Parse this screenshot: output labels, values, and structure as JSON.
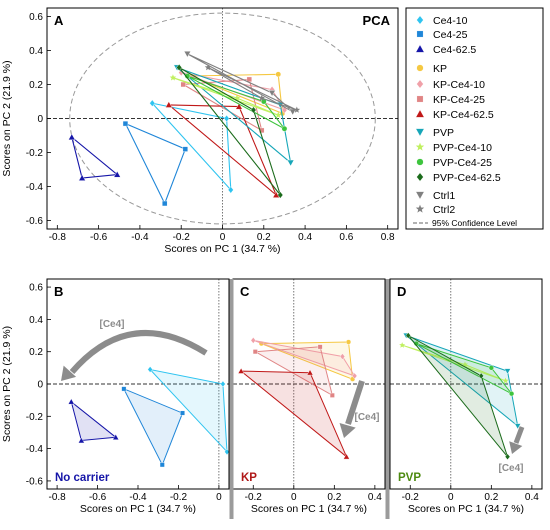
{
  "chart_data": [
    {
      "panel_id": "A",
      "type": "scatter",
      "panel_label": "A",
      "title": "PCA",
      "xlabel": "Scores on PC 1 (34.7 %)",
      "ylabel": "Scores on PC 2 (21.9 %)",
      "xlim": [
        -0.85,
        0.85
      ],
      "ylim": [
        -0.65,
        0.65
      ],
      "xticks": [
        "-0.8",
        "-0.6",
        "-0.4",
        "-0.2",
        "0",
        "0.2",
        "0.4",
        "0.6",
        "0.8"
      ],
      "yticks": [
        "0.6",
        "0.4",
        "0.2",
        "0",
        "-0.2",
        "-0.4",
        "-0.6"
      ],
      "legend_position": "right",
      "confidence_ellipse": {
        "label": "95% Confidence Level",
        "rx": 0.74,
        "ry": 0.62
      }
    },
    {
      "panel_id": "B",
      "type": "scatter",
      "panel_label": "B",
      "xlabel": "Scores on PC 1 (34.7 %)",
      "ylabel": "Scores on PC 2 (21.9 %)",
      "xlim": [
        -0.85,
        0.05
      ],
      "ylim": [
        -0.65,
        0.65
      ],
      "xticks": [
        "-0.8",
        "-0.6",
        "-0.4",
        "-0.2",
        "0"
      ],
      "yticks": [
        "0.6",
        "0.4",
        "0.2",
        "0",
        "-0.2",
        "-0.4",
        "-0.6"
      ],
      "corner_label": "No carrier",
      "corner_color": "#1515a8",
      "arrow_label": "[Ce4]",
      "series_names": [
        "Ce4-10",
        "Ce4-25",
        "Ce4-62.5"
      ]
    },
    {
      "panel_id": "C",
      "type": "scatter",
      "panel_label": "C",
      "xlabel": "Scores on PC 1 (34.7 %)",
      "xlim": [
        -0.3,
        0.45
      ],
      "ylim": [
        -0.65,
        0.65
      ],
      "xticks": [
        "-0.2",
        "0",
        "0.2",
        "0.4"
      ],
      "corner_label": "KP",
      "corner_color": "#b01818",
      "arrow_label": "[Ce4]",
      "series_names": [
        "KP",
        "KP-Ce4-10",
        "KP-Ce4-25",
        "KP-Ce4-62.5"
      ]
    },
    {
      "panel_id": "D",
      "type": "scatter",
      "panel_label": "D",
      "xlabel": "Scores on PC 1 (34.7 %)",
      "xlim": [
        -0.3,
        0.45
      ],
      "ylim": [
        -0.65,
        0.65
      ],
      "xticks": [
        "-0.2",
        "0",
        "0.2",
        "0.4"
      ],
      "corner_label": "PVP",
      "corner_color": "#4d8a10",
      "arrow_label": "[Ce4]",
      "series_names": [
        "PVP",
        "PVP-Ce4-10",
        "PVP-Ce4-25",
        "PVP-Ce4-62.5"
      ]
    }
  ],
  "series": [
    {
      "name": "Ce4-10",
      "color": "#2ec4f0",
      "marker": "diamond",
      "group": "nocarrier",
      "points": [
        [
          -0.34,
          0.09
        ],
        [
          0.04,
          -0.42
        ],
        [
          0.02,
          0.0
        ]
      ]
    },
    {
      "name": "Ce4-25",
      "color": "#1f86d8",
      "marker": "square",
      "group": "nocarrier",
      "points": [
        [
          -0.47,
          -0.03
        ],
        [
          -0.28,
          -0.5
        ],
        [
          -0.18,
          -0.18
        ]
      ]
    },
    {
      "name": "Ce4-62.5",
      "color": "#1515a8",
      "marker": "triangle",
      "group": "nocarrier",
      "points": [
        [
          -0.73,
          -0.11
        ],
        [
          -0.68,
          -0.35
        ],
        [
          -0.51,
          -0.33
        ]
      ]
    },
    {
      "name": "KP",
      "color": "#f5c842",
      "marker": "circle",
      "group": "kp",
      "points": [
        [
          -0.16,
          0.25
        ],
        [
          0.27,
          0.26
        ],
        [
          0.29,
          0.03
        ]
      ]
    },
    {
      "name": "KP-Ce4-10",
      "color": "#f0a0a8",
      "marker": "diamond",
      "group": "kp",
      "points": [
        [
          -0.2,
          0.27
        ],
        [
          0.3,
          0.05
        ],
        [
          0.24,
          0.17
        ]
      ]
    },
    {
      "name": "KP-Ce4-25",
      "color": "#e08585",
      "marker": "square",
      "group": "kp",
      "points": [
        [
          -0.19,
          0.2
        ],
        [
          0.13,
          0.23
        ],
        [
          0.19,
          -0.07
        ]
      ]
    },
    {
      "name": "KP-Ce4-62.5",
      "color": "#c01818",
      "marker": "triangle",
      "group": "kp",
      "points": [
        [
          -0.26,
          0.08
        ],
        [
          0.08,
          0.07
        ],
        [
          0.26,
          -0.45
        ]
      ]
    },
    {
      "name": "PVP",
      "color": "#16a6b8",
      "marker": "triangle_down",
      "group": "pvp",
      "points": [
        [
          -0.22,
          0.3
        ],
        [
          0.28,
          0.08
        ],
        [
          0.33,
          -0.26
        ]
      ]
    },
    {
      "name": "PVP-Ce4-10",
      "color": "#c0f060",
      "marker": "star",
      "group": "pvp",
      "points": [
        [
          -0.24,
          0.24
        ],
        [
          0.07,
          0.12
        ],
        [
          0.27,
          0.02
        ]
      ]
    },
    {
      "name": "PVP-Ce4-25",
      "color": "#3dc43d",
      "marker": "circle",
      "group": "pvp",
      "points": [
        [
          -0.17,
          0.25
        ],
        [
          0.2,
          0.1
        ],
        [
          0.3,
          -0.06
        ]
      ]
    },
    {
      "name": "PVP-Ce4-62.5",
      "color": "#1b6b1b",
      "marker": "diamond",
      "group": "pvp",
      "points": [
        [
          -0.21,
          0.3
        ],
        [
          0.15,
          0.05
        ],
        [
          0.28,
          -0.45
        ]
      ]
    },
    {
      "name": "Ctrl1",
      "color": "#808080",
      "marker": "triangle_down",
      "group": "ctrl",
      "points": [
        [
          -0.17,
          0.38
        ],
        [
          0.34,
          0.04
        ],
        [
          0.24,
          0.15
        ]
      ]
    },
    {
      "name": "Ctrl2",
      "color": "#808080",
      "marker": "star",
      "group": "ctrl",
      "points": [
        [
          -0.07,
          0.3
        ],
        [
          0.36,
          0.05
        ],
        [
          0.19,
          0.12
        ]
      ]
    }
  ],
  "legend": {
    "items": [
      {
        "label": "Ce4-10",
        "marker": "diamond",
        "color": "#2ec4f0"
      },
      {
        "label": "Ce4-25",
        "marker": "square",
        "color": "#1f86d8"
      },
      {
        "label": "Ce4-62.5",
        "marker": "triangle",
        "color": "#1515a8"
      },
      {
        "label": "KP",
        "marker": "circle",
        "color": "#f5c842"
      },
      {
        "label": "KP-Ce4-10",
        "marker": "diamond",
        "color": "#f0a0a8"
      },
      {
        "label": "KP-Ce4-25",
        "marker": "square",
        "color": "#e08585"
      },
      {
        "label": "KP-Ce4-62.5",
        "marker": "triangle",
        "color": "#c01818"
      },
      {
        "label": "PVP",
        "marker": "triangle_down",
        "color": "#16a6b8"
      },
      {
        "label": "PVP-Ce4-10",
        "marker": "star",
        "color": "#c0f060"
      },
      {
        "label": "PVP-Ce4-25",
        "marker": "circle",
        "color": "#3dc43d"
      },
      {
        "label": "PVP-Ce4-62.5",
        "marker": "diamond",
        "color": "#1b6b1b"
      },
      {
        "label": "Ctrl1",
        "marker": "triangle_down",
        "color": "#808080"
      },
      {
        "label": "Ctrl2",
        "marker": "star",
        "color": "#808080"
      },
      {
        "label": "95% Confidence Level",
        "marker": "dashed-line",
        "color": "#666666"
      }
    ]
  }
}
